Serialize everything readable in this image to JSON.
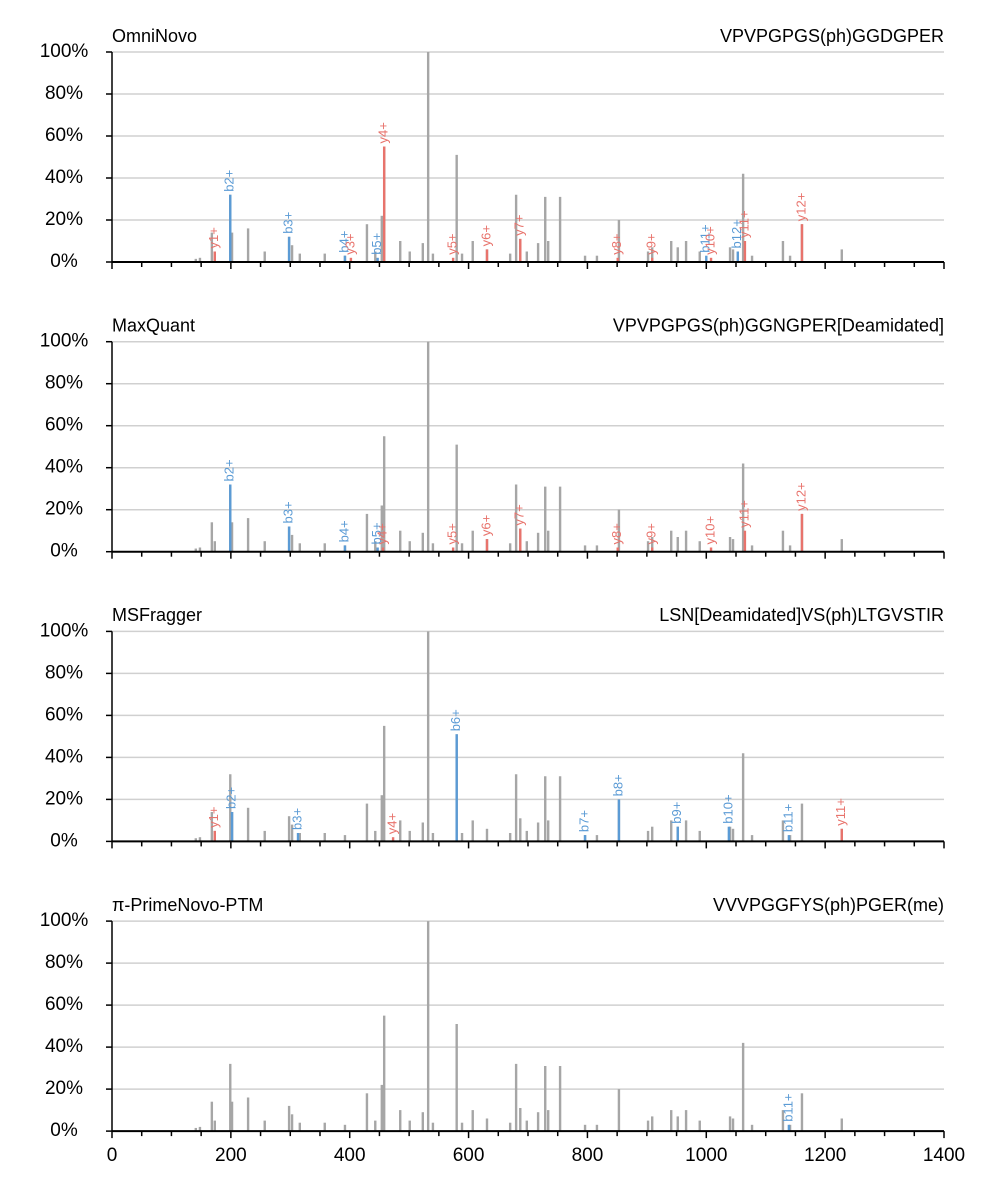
{
  "chart_data": [
    {
      "type": "spectrum",
      "title": "OmniNovo",
      "subtitle": "VPVPGPGS(ph)GGDGPER",
      "x": [
        141,
        148,
        168,
        173,
        199,
        202,
        229,
        257,
        298,
        303,
        316,
        358,
        392,
        429,
        443,
        454,
        458,
        485,
        501,
        523,
        532,
        540,
        580,
        589,
        607,
        631,
        670,
        680,
        687,
        698,
        717,
        729,
        734,
        754,
        796,
        816,
        853,
        902,
        909,
        941,
        952,
        966,
        989,
        1040,
        1045,
        1062,
        1077,
        1129,
        1141,
        1161,
        1228
      ],
      "values": [
        1.5,
        2,
        14,
        5,
        32,
        14,
        16,
        5,
        12,
        8,
        4,
        4,
        3,
        18,
        5,
        22,
        55,
        10,
        5,
        9,
        100,
        4,
        51,
        4,
        10,
        6,
        4,
        32,
        11,
        5,
        9,
        31,
        10,
        31,
        3,
        3,
        20,
        5,
        7,
        10,
        7,
        10,
        5,
        7,
        6,
        42,
        3,
        10,
        3,
        18,
        6
      ],
      "color": "#a6a6a6",
      "series": [
        {
          "color": "#5b9bd5",
          "x": [
            199,
            298,
            392,
            447,
            1000,
            1053
          ],
          "values": [
            32,
            12,
            3,
            2,
            3,
            5
          ],
          "labels": [
            "b2+",
            "b3+",
            "b4+",
            "b5+",
            "b11+",
            "b12+"
          ]
        },
        {
          "color": "#e8736c",
          "x": [
            173,
            402,
            458,
            574,
            631,
            687,
            851,
            909,
            1008,
            1065,
            1161
          ],
          "values": [
            5,
            2,
            55,
            2,
            6,
            11,
            2,
            2,
            2,
            10,
            18
          ],
          "labels": [
            "y1+",
            "y3+",
            "y4+",
            "y5+",
            "y6+",
            "y7+",
            "y8+",
            "y9+",
            "y10+",
            "y11+",
            "y12+"
          ]
        }
      ],
      "xlim": [
        0,
        1400
      ],
      "xticks": [
        0,
        200,
        400,
        600,
        800,
        1000,
        1200,
        1400
      ],
      "xminorticks": [
        50,
        100,
        150,
        250,
        300,
        350,
        450,
        500,
        550,
        650,
        700,
        750,
        850,
        900,
        950,
        1050,
        1100,
        1150,
        1250,
        1300,
        1350
      ],
      "ylim": [
        0,
        100
      ],
      "yticks": [
        {
          "value": 0,
          "label": "0%"
        },
        {
          "value": 20,
          "label": "20%"
        },
        {
          "value": 40,
          "label": "40%"
        },
        {
          "value": 60,
          "label": "60%"
        },
        {
          "value": 80,
          "label": "80%"
        },
        {
          "value": 100,
          "label": "100%"
        }
      ],
      "grid": true
    },
    {
      "type": "spectrum",
      "title": "MaxQuant",
      "subtitle": "VPVPGPGS(ph)GGNGPER[Deamidated]",
      "x": [
        141,
        148,
        168,
        173,
        199,
        202,
        229,
        257,
        298,
        303,
        316,
        358,
        392,
        429,
        443,
        454,
        458,
        485,
        501,
        523,
        532,
        540,
        580,
        589,
        607,
        631,
        670,
        680,
        687,
        698,
        717,
        729,
        734,
        754,
        796,
        816,
        853,
        902,
        909,
        941,
        952,
        966,
        989,
        1040,
        1045,
        1062,
        1077,
        1129,
        1141,
        1161,
        1228
      ],
      "values": [
        1.5,
        2,
        14,
        5,
        32,
        14,
        16,
        5,
        12,
        8,
        4,
        4,
        3,
        18,
        5,
        22,
        55,
        10,
        5,
        9,
        100,
        4,
        51,
        4,
        10,
        6,
        4,
        32,
        11,
        5,
        9,
        31,
        10,
        31,
        3,
        3,
        20,
        5,
        7,
        10,
        7,
        10,
        5,
        7,
        6,
        42,
        3,
        10,
        3,
        18,
        6
      ],
      "color": "#a6a6a6",
      "series": [
        {
          "color": "#5b9bd5",
          "x": [
            199,
            298,
            392,
            447
          ],
          "values": [
            32,
            12,
            3,
            2
          ],
          "labels": [
            "b2+",
            "b3+",
            "b4+",
            "b5+"
          ]
        },
        {
          "color": "#e8736c",
          "x": [
            456,
            574,
            631,
            687,
            851,
            909,
            1008,
            1065,
            1161
          ],
          "values": [
            2,
            2,
            6,
            11,
            2,
            2,
            2,
            10,
            18
          ],
          "labels": [
            "y4+",
            "y5+",
            "y6+",
            "y7+",
            "y8+",
            "y9+",
            "y10+",
            "y11+",
            "y12+"
          ]
        }
      ],
      "xlim": [
        0,
        1400
      ],
      "xticks": [
        0,
        200,
        400,
        600,
        800,
        1000,
        1200,
        1400
      ],
      "xminorticks": [
        50,
        100,
        150,
        250,
        300,
        350,
        450,
        500,
        550,
        650,
        700,
        750,
        850,
        900,
        950,
        1050,
        1100,
        1150,
        1250,
        1300,
        1350
      ],
      "ylim": [
        0,
        100
      ],
      "yticks": [
        {
          "value": 0,
          "label": "0%"
        },
        {
          "value": 20,
          "label": "20%"
        },
        {
          "value": 40,
          "label": "40%"
        },
        {
          "value": 60,
          "label": "60%"
        },
        {
          "value": 80,
          "label": "80%"
        },
        {
          "value": 100,
          "label": "100%"
        }
      ],
      "grid": true
    },
    {
      "type": "spectrum",
      "title": "MSFragger",
      "subtitle": "LSN[Deamidated]VS(ph)LTGVSTIR",
      "x": [
        141,
        148,
        168,
        173,
        199,
        202,
        229,
        257,
        298,
        303,
        316,
        358,
        392,
        429,
        443,
        454,
        458,
        485,
        501,
        523,
        532,
        540,
        580,
        589,
        607,
        631,
        670,
        680,
        687,
        698,
        717,
        729,
        734,
        754,
        796,
        816,
        853,
        902,
        909,
        941,
        952,
        966,
        989,
        1040,
        1045,
        1062,
        1077,
        1129,
        1141,
        1161,
        1228
      ],
      "values": [
        1.5,
        2,
        14,
        5,
        32,
        14,
        16,
        5,
        12,
        8,
        4,
        4,
        3,
        18,
        5,
        22,
        55,
        10,
        5,
        9,
        100,
        4,
        51,
        4,
        10,
        6,
        4,
        32,
        11,
        5,
        9,
        31,
        10,
        31,
        3,
        3,
        20,
        5,
        7,
        10,
        7,
        10,
        5,
        7,
        6,
        42,
        3,
        10,
        3,
        18,
        6
      ],
      "color": "#a6a6a6",
      "series": [
        {
          "color": "#5b9bd5",
          "x": [
            202,
            313,
            580,
            796,
            853,
            952,
            1038,
            1139
          ],
          "values": [
            14,
            4,
            51,
            3,
            20,
            7,
            7,
            3
          ],
          "labels": [
            "b2+",
            "b3+",
            "b6+",
            "b7+",
            "b8+",
            "b9+",
            "b10+",
            "b11+"
          ]
        },
        {
          "color": "#e8736c",
          "x": [
            173,
            473,
            1228
          ],
          "values": [
            5,
            2,
            6
          ],
          "labels": [
            "y1+",
            "y4+",
            "y11+"
          ]
        }
      ],
      "xlim": [
        0,
        1400
      ],
      "xticks": [
        0,
        200,
        400,
        600,
        800,
        1000,
        1200,
        1400
      ],
      "xminorticks": [
        50,
        100,
        150,
        250,
        300,
        350,
        450,
        500,
        550,
        650,
        700,
        750,
        850,
        900,
        950,
        1050,
        1100,
        1150,
        1250,
        1300,
        1350
      ],
      "ylim": [
        0,
        100
      ],
      "yticks": [
        {
          "value": 0,
          "label": "0%"
        },
        {
          "value": 20,
          "label": "20%"
        },
        {
          "value": 40,
          "label": "40%"
        },
        {
          "value": 60,
          "label": "60%"
        },
        {
          "value": 80,
          "label": "80%"
        },
        {
          "value": 100,
          "label": "100%"
        }
      ],
      "grid": true
    },
    {
      "type": "spectrum",
      "title": "π-PrimeNovo-PTM",
      "subtitle": "VVVPGGFYS(ph)PGER(me)",
      "x": [
        141,
        148,
        168,
        173,
        199,
        202,
        229,
        257,
        298,
        303,
        316,
        358,
        392,
        429,
        443,
        454,
        458,
        485,
        501,
        523,
        532,
        540,
        580,
        589,
        607,
        631,
        670,
        680,
        687,
        698,
        717,
        729,
        734,
        754,
        796,
        816,
        853,
        902,
        909,
        941,
        952,
        966,
        989,
        1040,
        1045,
        1062,
        1077,
        1129,
        1141,
        1161,
        1228
      ],
      "values": [
        1.5,
        2,
        14,
        5,
        32,
        14,
        16,
        5,
        12,
        8,
        4,
        4,
        3,
        18,
        5,
        22,
        55,
        10,
        5,
        9,
        100,
        4,
        51,
        4,
        10,
        6,
        4,
        32,
        11,
        5,
        9,
        31,
        10,
        31,
        3,
        3,
        20,
        5,
        7,
        10,
        7,
        10,
        5,
        7,
        6,
        42,
        3,
        10,
        3,
        18,
        6
      ],
      "color": "#a6a6a6",
      "series": [
        {
          "color": "#5b9bd5",
          "x": [
            1139
          ],
          "values": [
            3
          ],
          "labels": [
            "b11+"
          ]
        }
      ],
      "xlim": [
        0,
        1400
      ],
      "xticks": [
        0,
        200,
        400,
        600,
        800,
        1000,
        1200,
        1400
      ],
      "xminorticks": [
        50,
        100,
        150,
        250,
        300,
        350,
        450,
        500,
        550,
        650,
        700,
        750,
        850,
        900,
        950,
        1050,
        1100,
        1150,
        1250,
        1300,
        1350
      ],
      "ylim": [
        0,
        100
      ],
      "yticks": [
        {
          "value": 0,
          "label": "0%"
        },
        {
          "value": 20,
          "label": "20%"
        },
        {
          "value": 40,
          "label": "40%"
        },
        {
          "value": 60,
          "label": "60%"
        },
        {
          "value": 80,
          "label": "80%"
        },
        {
          "value": 100,
          "label": "100%"
        }
      ],
      "grid": true,
      "xticklabels": true
    }
  ]
}
